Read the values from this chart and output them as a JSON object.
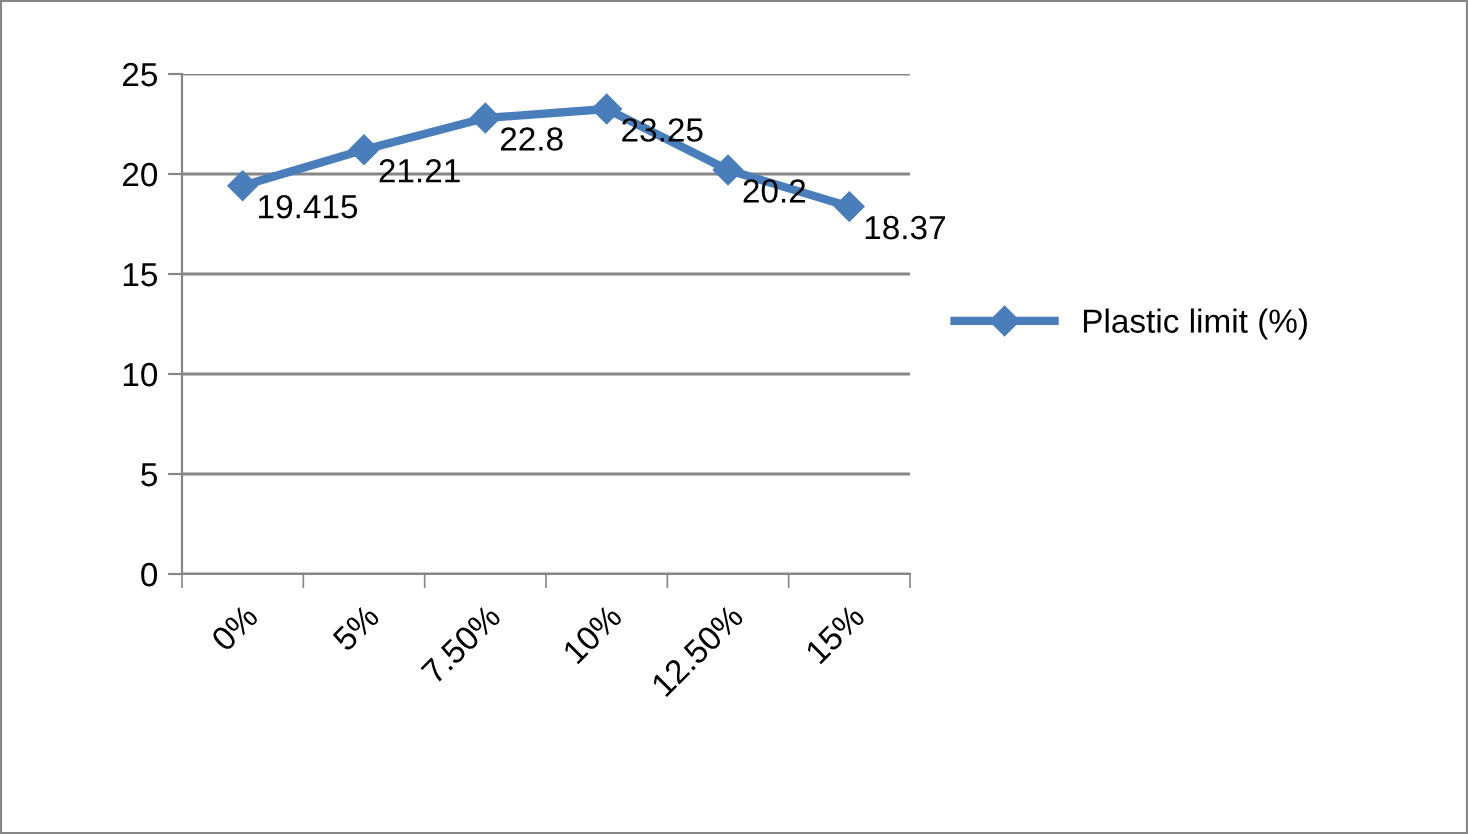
{
  "chart_data": {
    "type": "line",
    "categories": [
      "0%",
      "5%",
      "7.50%",
      "10%",
      "12.50%",
      "15%"
    ],
    "series": [
      {
        "name": "Plastic limit (%)",
        "color": "#4a7ebb",
        "values": [
          19.415,
          21.21,
          22.8,
          23.25,
          20.2,
          18.37
        ]
      }
    ],
    "ylim": [
      0,
      25
    ],
    "yticks": [
      0,
      5,
      10,
      15,
      20,
      25
    ],
    "grid": "y",
    "legend": "right",
    "marker": "diamond",
    "line_style": "solid",
    "data_labels": true
  }
}
